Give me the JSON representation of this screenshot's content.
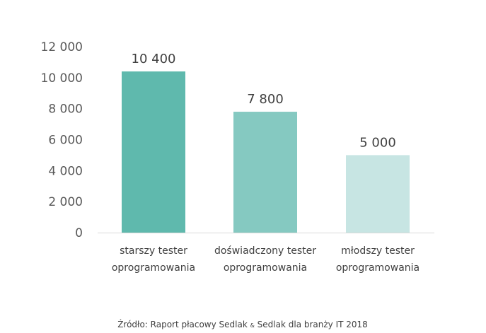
{
  "chart_data": {
    "type": "bar",
    "categories": [
      [
        "starszy tester",
        "oprogramowania"
      ],
      [
        "doświadczony tester",
        "oprogramowania"
      ],
      [
        "młodszy tester",
        "oprogramowania"
      ]
    ],
    "values": [
      10400,
      7800,
      5000
    ],
    "data_labels": [
      "10 400",
      "7 800",
      "5 000"
    ],
    "bar_colors": [
      "#5fb9ad",
      "#85c9c1",
      "#c7e5e3"
    ],
    "ylim": [
      0,
      12000
    ],
    "yticks": [
      0,
      2000,
      4000,
      6000,
      8000,
      10000,
      12000
    ],
    "ytick_labels": [
      "0",
      "2 000",
      "4 000",
      "6 000",
      "8 000",
      "10 000",
      "12 000"
    ],
    "grid": false,
    "title": "",
    "xlabel": "",
    "ylabel": ""
  },
  "source": {
    "prefix": "Źródło: Raport płacowy Sedlak ",
    "amp": "&",
    "suffix": " Sedlak dla branży IT 2018"
  }
}
